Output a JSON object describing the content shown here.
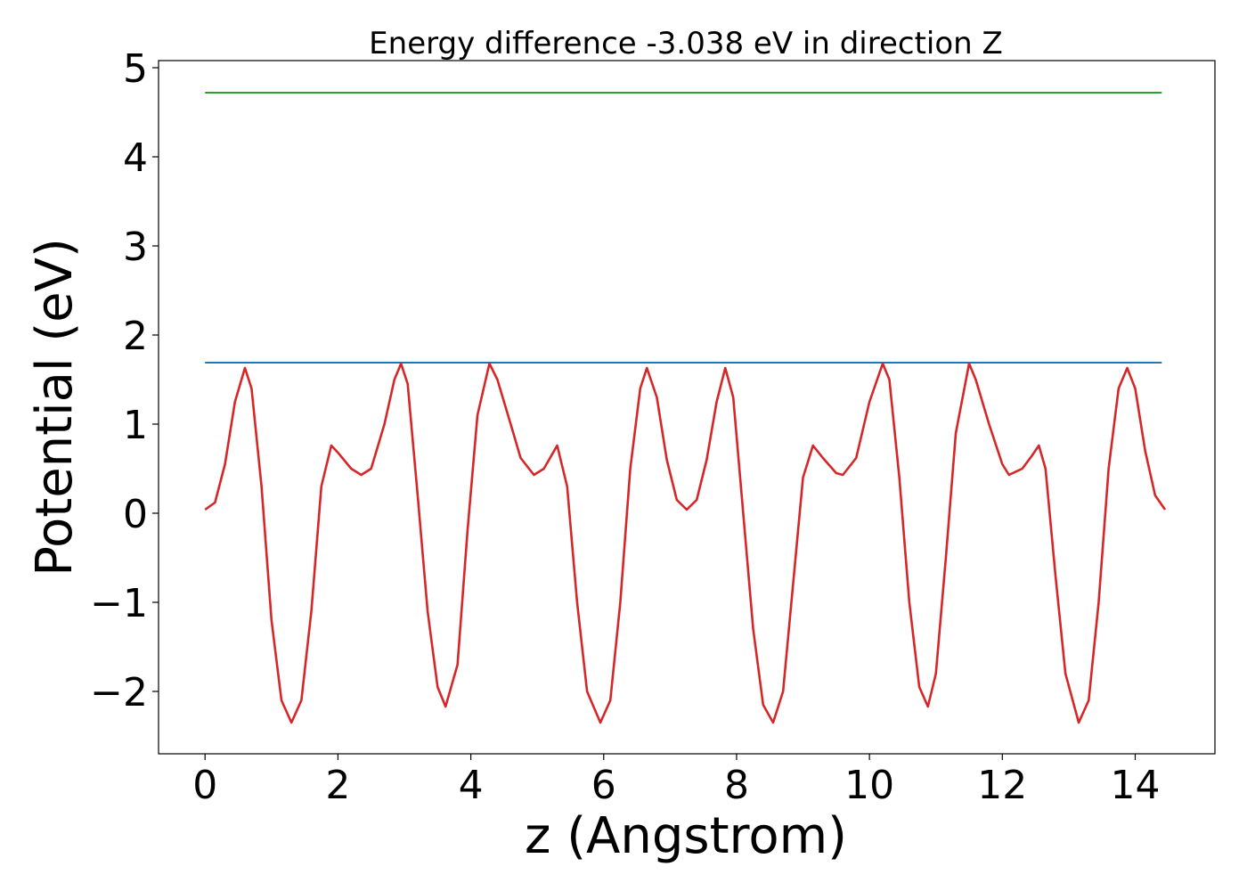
{
  "chart_data": {
    "type": "line",
    "title": "Energy difference -3.038 eV in direction Z",
    "xlabel": "z (Angstrom)",
    "ylabel": "Potential (eV)",
    "xlim": [
      -0.7,
      15.2
    ],
    "ylim": [
      -2.7,
      5.08
    ],
    "x_ticks": [
      0,
      2,
      4,
      6,
      8,
      10,
      12,
      14
    ],
    "x_tick_labels": [
      "0",
      "2",
      "4",
      "6",
      "8",
      "10",
      "12",
      "14"
    ],
    "y_ticks": [
      -2,
      -1,
      0,
      1,
      2,
      3,
      4,
      5
    ],
    "y_tick_labels": [
      "−2",
      "−1",
      "0",
      "1",
      "2",
      "3",
      "4",
      "5"
    ],
    "grid": false,
    "legend": "none",
    "series": [
      {
        "kind": "horizontal",
        "color": "#2ca02c",
        "x_range": [
          0,
          14.4
        ],
        "value": 4.72
      },
      {
        "kind": "horizontal",
        "color": "#1f77b4",
        "x_range": [
          0,
          14.4
        ],
        "value": 1.69
      },
      {
        "kind": "curve",
        "color": "#d62728",
        "points": [
          [
            0.0,
            0.04
          ],
          [
            0.15,
            0.12
          ],
          [
            0.3,
            0.55
          ],
          [
            0.45,
            1.25
          ],
          [
            0.6,
            1.63
          ],
          [
            0.7,
            1.4
          ],
          [
            0.85,
            0.3
          ],
          [
            1.0,
            -1.2
          ],
          [
            1.15,
            -2.1
          ],
          [
            1.3,
            -2.35
          ],
          [
            1.45,
            -2.1
          ],
          [
            1.6,
            -1.1
          ],
          [
            1.75,
            0.3
          ],
          [
            1.9,
            0.76
          ],
          [
            2.0,
            0.68
          ],
          [
            2.2,
            0.5
          ],
          [
            2.35,
            0.43
          ],
          [
            2.5,
            0.5
          ],
          [
            2.7,
            1.0
          ],
          [
            2.85,
            1.5
          ],
          [
            2.95,
            1.68
          ],
          [
            3.05,
            1.45
          ],
          [
            3.2,
            0.2
          ],
          [
            3.35,
            -1.1
          ],
          [
            3.5,
            -1.95
          ],
          [
            3.62,
            -2.17
          ],
          [
            3.8,
            -1.7
          ],
          [
            3.95,
            -0.2
          ],
          [
            4.1,
            1.1
          ],
          [
            4.28,
            1.68
          ],
          [
            4.4,
            1.5
          ],
          [
            4.6,
            1.0
          ],
          [
            4.75,
            0.62
          ],
          [
            4.95,
            0.43
          ],
          [
            5.1,
            0.5
          ],
          [
            5.3,
            0.76
          ],
          [
            5.45,
            0.3
          ],
          [
            5.6,
            -1.0
          ],
          [
            5.75,
            -2.0
          ],
          [
            5.95,
            -2.35
          ],
          [
            6.1,
            -2.1
          ],
          [
            6.25,
            -1.0
          ],
          [
            6.4,
            0.5
          ],
          [
            6.55,
            1.4
          ],
          [
            6.65,
            1.63
          ],
          [
            6.8,
            1.3
          ],
          [
            6.95,
            0.6
          ],
          [
            7.1,
            0.15
          ],
          [
            7.25,
            0.04
          ],
          [
            7.4,
            0.15
          ],
          [
            7.55,
            0.6
          ],
          [
            7.7,
            1.25
          ],
          [
            7.83,
            1.63
          ],
          [
            7.95,
            1.3
          ],
          [
            8.1,
            0.0
          ],
          [
            8.25,
            -1.3
          ],
          [
            8.4,
            -2.15
          ],
          [
            8.55,
            -2.35
          ],
          [
            8.7,
            -2.0
          ],
          [
            8.85,
            -0.8
          ],
          [
            9.0,
            0.4
          ],
          [
            9.15,
            0.76
          ],
          [
            9.3,
            0.62
          ],
          [
            9.5,
            0.45
          ],
          [
            9.6,
            0.43
          ],
          [
            9.8,
            0.62
          ],
          [
            10.0,
            1.25
          ],
          [
            10.2,
            1.68
          ],
          [
            10.3,
            1.5
          ],
          [
            10.45,
            0.4
          ],
          [
            10.6,
            -1.0
          ],
          [
            10.75,
            -1.95
          ],
          [
            10.88,
            -2.17
          ],
          [
            11.0,
            -1.8
          ],
          [
            11.15,
            -0.5
          ],
          [
            11.3,
            0.9
          ],
          [
            11.5,
            1.68
          ],
          [
            11.6,
            1.5
          ],
          [
            11.8,
            1.0
          ],
          [
            12.0,
            0.55
          ],
          [
            12.1,
            0.43
          ],
          [
            12.3,
            0.5
          ],
          [
            12.45,
            0.65
          ],
          [
            12.55,
            0.76
          ],
          [
            12.65,
            0.5
          ],
          [
            12.8,
            -0.7
          ],
          [
            12.95,
            -1.8
          ],
          [
            13.15,
            -2.35
          ],
          [
            13.3,
            -2.1
          ],
          [
            13.45,
            -1.0
          ],
          [
            13.6,
            0.5
          ],
          [
            13.75,
            1.4
          ],
          [
            13.88,
            1.63
          ],
          [
            14.0,
            1.4
          ],
          [
            14.15,
            0.7
          ],
          [
            14.3,
            0.2
          ],
          [
            14.45,
            0.04
          ]
        ]
      }
    ]
  }
}
